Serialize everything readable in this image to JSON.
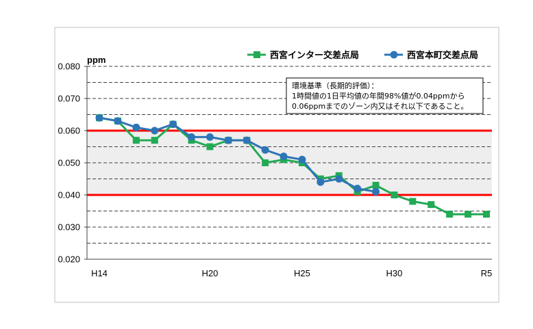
{
  "chart_data": {
    "type": "line",
    "y_unit": "ppm",
    "ylim": [
      0.02,
      0.08
    ],
    "yticks": [
      "0.020",
      "0.030",
      "0.040",
      "0.050",
      "0.060",
      "0.070",
      "0.080"
    ],
    "ytick_values": [
      0.02,
      0.03,
      0.04,
      0.05,
      0.06,
      0.07,
      0.08
    ],
    "ygrid_dashed": [
      0.025,
      0.035,
      0.045,
      0.055,
      0.065,
      0.075
    ],
    "x_labels": [
      {
        "label": "H14",
        "index": 0
      },
      {
        "label": "H20",
        "index": 6
      },
      {
        "label": "H25",
        "index": 11
      },
      {
        "label": "H30",
        "index": 16
      },
      {
        "label": "R5",
        "index": 21
      }
    ],
    "x_count": 22,
    "standard_band": {
      "low": 0.04,
      "high": 0.06,
      "band_color": "#eeeeee",
      "line_color": "#ff0000"
    },
    "series": [
      {
        "name": "西宮インター交差点局",
        "color": "#22aa55",
        "marker": "square",
        "x_index": [
          0,
          1,
          2,
          3,
          4,
          5,
          6,
          7,
          8,
          9,
          10,
          11,
          12,
          13,
          14,
          15,
          16,
          17,
          18,
          19,
          20,
          21
        ],
        "values": [
          0.064,
          0.063,
          0.057,
          0.057,
          0.062,
          0.057,
          0.055,
          0.057,
          0.057,
          0.05,
          0.051,
          0.05,
          0.045,
          0.046,
          0.041,
          0.043,
          0.04,
          0.038,
          0.037,
          0.034,
          0.034,
          0.034
        ]
      },
      {
        "name": "西宮本町交差点局",
        "color": "#2e75b6",
        "marker": "circle",
        "x_index": [
          0,
          1,
          2,
          3,
          4,
          5,
          6,
          7,
          8,
          9,
          10,
          11,
          12,
          13,
          14,
          15
        ],
        "values": [
          0.064,
          0.063,
          0.061,
          0.06,
          0.062,
          0.058,
          0.058,
          0.057,
          0.057,
          0.054,
          0.052,
          0.051,
          0.044,
          0.045,
          0.042,
          0.041
        ]
      }
    ],
    "annotation": {
      "lines": [
        "環境基準（長期的評価）：",
        "1時間値の1日平均値の年間98%値が0.04ppmから",
        "0.06ppmまでのゾーン内又はそれ以下であること。"
      ]
    }
  }
}
